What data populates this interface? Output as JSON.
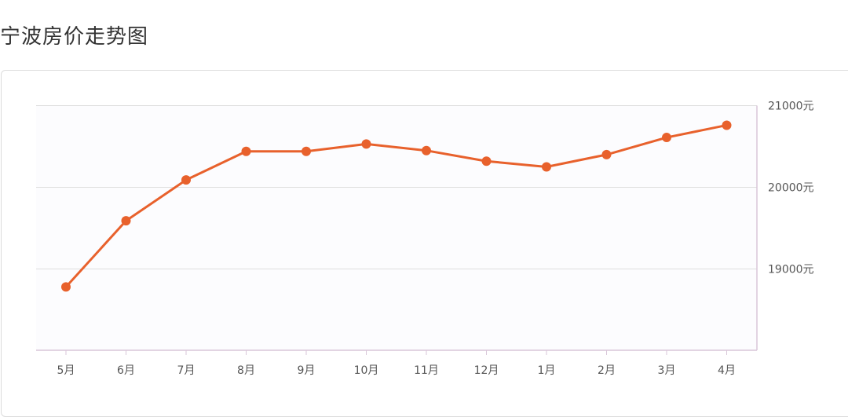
{
  "header": {
    "title": "宁波房价走势图"
  },
  "chart_data": {
    "type": "line",
    "title": "宁波房价走势图",
    "categories": [
      "5月",
      "6月",
      "7月",
      "8月",
      "9月",
      "10月",
      "11月",
      "12月",
      "1月",
      "2月",
      "3月",
      "4月"
    ],
    "series": [
      {
        "values": [
          18780,
          19590,
          20090,
          20440,
          20440,
          20530,
          20450,
          20320,
          20250,
          20400,
          20610,
          20760
        ]
      }
    ],
    "y_ticks": [
      19000,
      20000,
      21000
    ],
    "y_tick_labels": [
      "19000元",
      "20000元",
      "21000元"
    ],
    "ylim": [
      18000,
      21000
    ],
    "y_axis_position": "right",
    "grid": true,
    "legend": "none",
    "colors": {
      "line": "#e8612c",
      "grid": "#dedede",
      "axis": "#d9c6d9",
      "text": "#555555"
    }
  }
}
